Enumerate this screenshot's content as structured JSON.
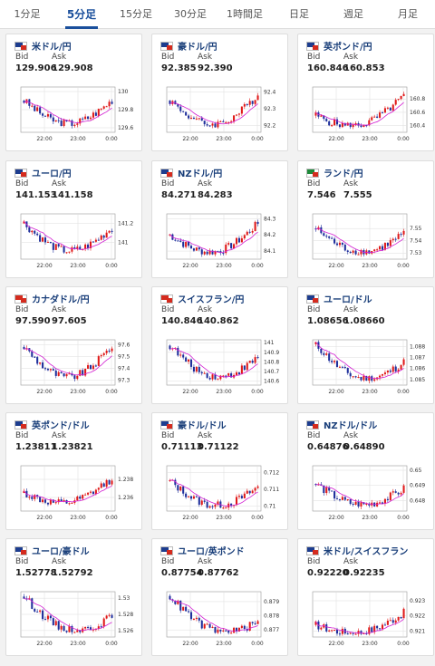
{
  "tabs": [
    {
      "label": "1分足",
      "active": false
    },
    {
      "label": "5分足",
      "active": true
    },
    {
      "label": "15分足",
      "active": false
    },
    {
      "label": "30分足",
      "active": false
    },
    {
      "label": "1時間足",
      "active": false
    },
    {
      "label": "日足",
      "active": false
    },
    {
      "label": "週足",
      "active": false
    },
    {
      "label": "月足",
      "active": false
    }
  ],
  "labels": {
    "bid": "Bid",
    "ask": "Ask"
  },
  "x_ticks": [
    "22:00",
    "23:00",
    "0:00"
  ],
  "colors": {
    "up": "#e01919",
    "down": "#1f2f9c",
    "ma": "#d21fd2",
    "pair": "#1a3f7a",
    "active_tab": "#1a4f9c"
  },
  "cards": [
    {
      "pair": "米ドル/円",
      "bid": "129.906",
      "ask": "129.908",
      "flag": [
        "#1d3d8f",
        "#ffffff"
      ],
      "chart_data": {
        "type": "candlestick",
        "y_ticks": [
          "130",
          "129.8",
          "129.6"
        ],
        "ylim": [
          129.55,
          130.05
        ],
        "start": 129.9,
        "end": 129.906,
        "low": 129.62,
        "high": 130.0
      }
    },
    {
      "pair": "豪ドル/円",
      "bid": "92.385",
      "ask": "92.390",
      "flag": [
        "#1d3d8f",
        "#ffffff"
      ],
      "chart_data": {
        "type": "candlestick",
        "y_ticks": [
          "92.4",
          "92.3",
          "92.2"
        ],
        "ylim": [
          92.16,
          92.43
        ],
        "start": 92.35,
        "end": 92.385,
        "low": 92.19,
        "high": 92.41
      }
    },
    {
      "pair": "英ポンド/円",
      "bid": "160.846",
      "ask": "160.853",
      "flag": [
        "#1d3d8f",
        "#ffffff"
      ],
      "chart_data": {
        "type": "candlestick",
        "y_ticks": [
          "160.8",
          "160.6",
          "160.4"
        ],
        "ylim": [
          160.3,
          160.98
        ],
        "start": 160.55,
        "end": 160.846,
        "low": 160.38,
        "high": 160.93
      }
    },
    {
      "pair": "ユーロ/円",
      "bid": "141.153",
      "ask": "141.158",
      "flag": [
        "#1d3d8f",
        "#ffffff"
      ],
      "chart_data": {
        "type": "candlestick",
        "y_ticks": [
          "141.2",
          "141"
        ],
        "ylim": [
          140.82,
          141.3
        ],
        "start": 141.2,
        "end": 141.153,
        "low": 140.88,
        "high": 141.25
      }
    },
    {
      "pair": "NZドル/円",
      "bid": "84.271",
      "ask": "84.283",
      "flag": [
        "#1d3d8f",
        "#ffffff"
      ],
      "chart_data": {
        "type": "candlestick",
        "y_ticks": [
          "84.3",
          "84.2",
          "84.1"
        ],
        "ylim": [
          84.05,
          84.33
        ],
        "start": 84.2,
        "end": 84.271,
        "low": 84.08,
        "high": 84.31
      }
    },
    {
      "pair": "ランド/円",
      "bid": "7.546",
      "ask": "7.555",
      "flag": [
        "#1e8a3a",
        "#ffffff"
      ],
      "chart_data": {
        "type": "candlestick",
        "y_ticks": [
          "7.55",
          "7.54",
          "7.53"
        ],
        "ylim": [
          7.525,
          7.562
        ],
        "start": 7.55,
        "end": 7.546,
        "low": 7.529,
        "high": 7.559
      }
    },
    {
      "pair": "カナダドル/円",
      "bid": "97.590",
      "ask": "97.605",
      "flag": [
        "#d52b1e",
        "#ffffff"
      ],
      "chart_data": {
        "type": "candlestick",
        "y_ticks": [
          "97.6",
          "97.5",
          "97.4",
          "97.3"
        ],
        "ylim": [
          97.26,
          97.64
        ],
        "start": 97.58,
        "end": 97.59,
        "low": 97.3,
        "high": 97.62
      }
    },
    {
      "pair": "スイスフラン/円",
      "bid": "140.846",
      "ask": "140.862",
      "flag": [
        "#d52b1e",
        "#ffffff"
      ],
      "chart_data": {
        "type": "candlestick",
        "y_ticks": [
          "141",
          "140.9",
          "140.8",
          "140.7",
          "140.6"
        ],
        "ylim": [
          140.56,
          141.03
        ],
        "start": 140.97,
        "end": 140.846,
        "low": 140.62,
        "high": 141.0
      }
    },
    {
      "pair": "ユーロ/ドル",
      "bid": "1.08656",
      "ask": "1.08660",
      "flag": [
        "#1d3d8f",
        "#ffffff"
      ],
      "chart_data": {
        "type": "candlestick",
        "y_ticks": [
          "1.088",
          "1.087",
          "1.086",
          "1.085"
        ],
        "ylim": [
          1.0845,
          1.0886
        ],
        "start": 1.0882,
        "end": 1.08656,
        "low": 1.0849,
        "high": 1.0884
      }
    },
    {
      "pair": "英ポンド/ドル",
      "bid": "1.23811",
      "ask": "1.23821",
      "flag": [
        "#1d3d8f",
        "#ffffff"
      ],
      "chart_data": {
        "type": "candlestick",
        "y_ticks": [
          "1.238",
          "1.236"
        ],
        "ylim": [
          1.2345,
          1.2395
        ],
        "start": 1.2365,
        "end": 1.23811,
        "low": 1.2352,
        "high": 1.2392
      }
    },
    {
      "pair": "豪ドル/ドル",
      "bid": "0.71113",
      "ask": "0.71122",
      "flag": [
        "#1d3d8f",
        "#ffffff"
      ],
      "chart_data": {
        "type": "candlestick",
        "y_ticks": [
          "0.712",
          "0.711",
          "0.71"
        ],
        "ylim": [
          0.7097,
          0.7124
        ],
        "start": 0.7115,
        "end": 0.71113,
        "low": 0.7099,
        "high": 0.7122
      }
    },
    {
      "pair": "NZドル/ドル",
      "bid": "0.64876",
      "ask": "0.64890",
      "flag": [
        "#1d3d8f",
        "#ffffff"
      ],
      "chart_data": {
        "type": "candlestick",
        "y_ticks": [
          "0.65",
          "0.649",
          "0.648"
        ],
        "ylim": [
          0.6473,
          0.6503
        ],
        "start": 0.6491,
        "end": 0.64876,
        "low": 0.6476,
        "high": 0.6501
      }
    },
    {
      "pair": "ユーロ/豪ドル",
      "bid": "1.52778",
      "ask": "1.52792",
      "flag": [
        "#1d3d8f",
        "#ffffff"
      ],
      "chart_data": {
        "type": "candlestick",
        "y_ticks": [
          "1.53",
          "1.528",
          "1.526"
        ],
        "ylim": [
          1.5252,
          1.5308
        ],
        "start": 1.5302,
        "end": 1.52778,
        "low": 1.5258,
        "high": 1.5305
      }
    },
    {
      "pair": "ユーロ/英ポンド",
      "bid": "0.87754",
      "ask": "0.87762",
      "flag": [
        "#1d3d8f",
        "#ffffff"
      ],
      "chart_data": {
        "type": "candlestick",
        "y_ticks": [
          "0.879",
          "0.878",
          "0.877"
        ],
        "ylim": [
          0.8765,
          0.8797
        ],
        "start": 0.8794,
        "end": 0.87754,
        "low": 0.8768,
        "high": 0.8796
      }
    },
    {
      "pair": "米ドル/スイスフラン",
      "bid": "0.92220",
      "ask": "0.92235",
      "flag": [
        "#1d3d8f",
        "#ffffff"
      ],
      "chart_data": {
        "type": "candlestick",
        "y_ticks": [
          "0.923",
          "0.922",
          "0.921"
        ],
        "ylim": [
          0.9206,
          0.9236
        ],
        "start": 0.9214,
        "end": 0.9222,
        "low": 0.9208,
        "high": 0.9234
      }
    }
  ]
}
